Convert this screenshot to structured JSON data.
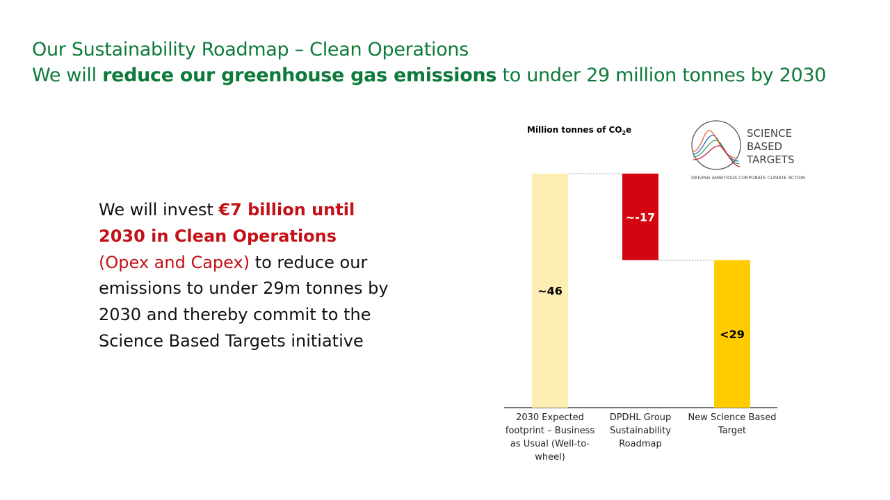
{
  "header": {
    "line1": "Our Sustainability Roadmap – Clean Operations",
    "line2": [
      "We will ",
      "reduce our greenhouse gas emissions",
      " to under 29 million tonnes by 2030"
    ]
  },
  "body": [
    "We will invest ",
    "€7 billion until 2030 in Clean Operations",
    " (Opex and Capex)",
    " to reduce our emissions to under 29m tonnes by 2030 and thereby commit to the Science Based Targets initiative"
  ],
  "logo": {
    "lines": [
      "SCIENCE",
      "BASED",
      "TARGETS"
    ],
    "tagline": "DRIVING AMBITIOUS CORPORATE CLIMATE ACTION"
  },
  "chart_data": {
    "type": "waterfall",
    "unit_label": [
      "Million tonnes of CO",
      "2",
      "e"
    ],
    "categories": [
      "2030 Expected footprint – Business as Usual (Well-to-wheel)",
      "DPDHL Group Sustainability Roadmap",
      "New Science Based Target"
    ],
    "values": [
      46,
      -17,
      29
    ],
    "value_labels": [
      "~46",
      "~-17",
      "<29"
    ],
    "colors": [
      "#fdefb3",
      "#d40511",
      "#ffcc00"
    ],
    "label_colors": [
      "#000000",
      "#ffffff",
      "#000000"
    ]
  }
}
